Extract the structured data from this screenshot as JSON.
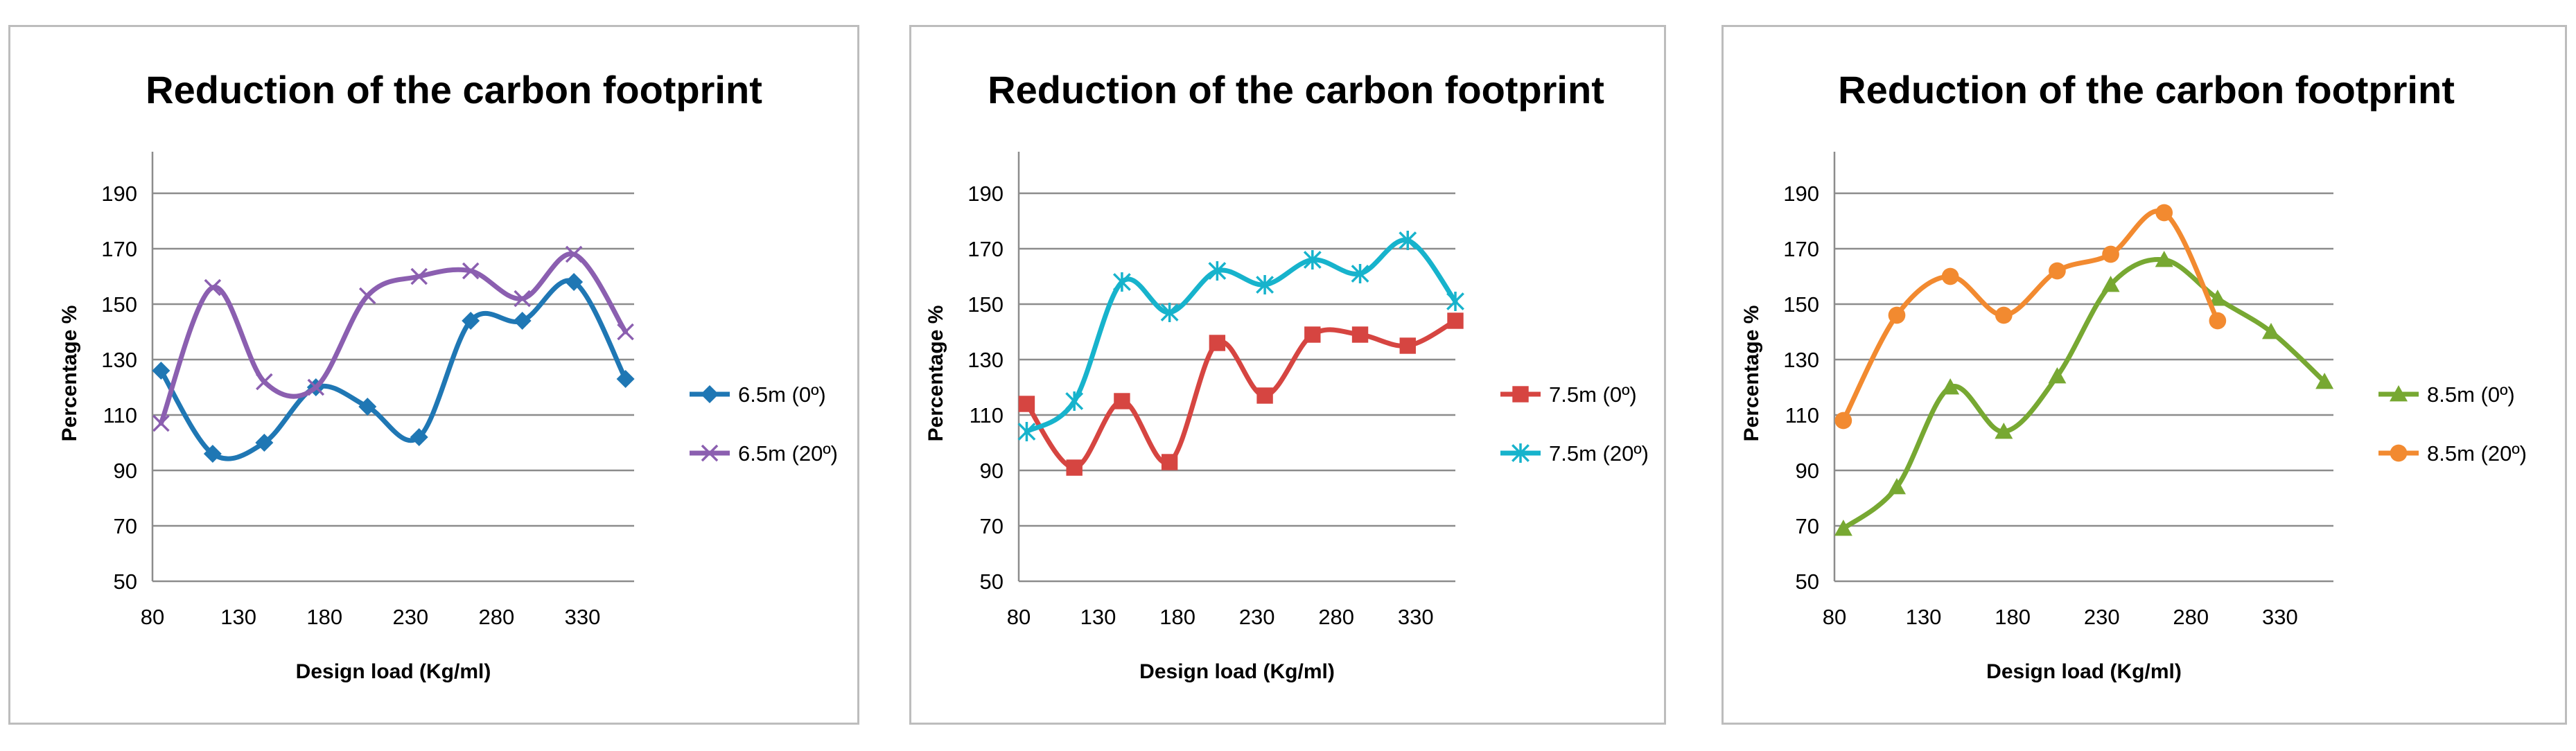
{
  "chart_data": [
    {
      "type": "line",
      "title": "Reduction of the carbon footprint",
      "xlabel": "Design load (Kg/ml)",
      "ylabel": "Percentage %",
      "xlim": [
        80,
        360
      ],
      "ylim": [
        50,
        200
      ],
      "xticks": [
        80,
        130,
        180,
        230,
        280,
        330
      ],
      "yticks": [
        50,
        70,
        90,
        110,
        130,
        150,
        170,
        190
      ],
      "grid": true,
      "legend": "right",
      "series": [
        {
          "name": "6.5m (0º)",
          "color": "#1f77b4",
          "marker": "diamond",
          "x": [
            85,
            115,
            145,
            175,
            205,
            235,
            265,
            295,
            325,
            355
          ],
          "y": [
            126,
            96,
            100,
            120,
            113,
            102,
            144,
            144,
            158,
            123
          ]
        },
        {
          "name": "6.5m (20º)",
          "color": "#8b5fb0",
          "marker": "x",
          "x": [
            85,
            115,
            145,
            175,
            205,
            235,
            265,
            295,
            325,
            355
          ],
          "y": [
            107,
            156,
            122,
            120,
            153,
            160,
            162,
            152,
            168,
            140
          ]
        }
      ]
    },
    {
      "type": "line",
      "title": "Reduction of the carbon footprint",
      "xlabel": "Design load (Kg/ml)",
      "ylabel": "Percentage %",
      "xlim": [
        80,
        355
      ],
      "ylim": [
        50,
        200
      ],
      "xticks": [
        80,
        130,
        180,
        230,
        280,
        330
      ],
      "yticks": [
        50,
        70,
        90,
        110,
        130,
        150,
        170,
        190
      ],
      "grid": true,
      "legend": "right",
      "series": [
        {
          "name": "7.5m (0º)",
          "color": "#d64541",
          "marker": "square",
          "x": [
            85,
            115,
            145,
            175,
            205,
            235,
            265,
            295,
            325,
            355
          ],
          "y": [
            114,
            91,
            115,
            93,
            136,
            117,
            139,
            139,
            135,
            144
          ]
        },
        {
          "name": "7.5m (20º)",
          "color": "#17b3cc",
          "marker": "star",
          "x": [
            85,
            115,
            145,
            175,
            205,
            235,
            265,
            295,
            325,
            355
          ],
          "y": [
            104,
            115,
            158,
            147,
            162,
            157,
            166,
            161,
            173,
            151
          ]
        }
      ]
    },
    {
      "type": "line",
      "title": "Reduction of the carbon footprint",
      "xlabel": "Design load (Kg/ml)",
      "ylabel": "Percentage %",
      "xlim": [
        80,
        360
      ],
      "ylim": [
        50,
        200
      ],
      "xticks": [
        80,
        130,
        180,
        230,
        280,
        330
      ],
      "yticks": [
        50,
        70,
        90,
        110,
        130,
        150,
        170,
        190
      ],
      "grid": true,
      "legend": "right",
      "series": [
        {
          "name": "8.5m (0º)",
          "color": "#77a832",
          "marker": "triangle",
          "x": [
            85,
            115,
            145,
            175,
            205,
            235,
            265,
            295,
            325,
            355
          ],
          "y": [
            69,
            84,
            120,
            104,
            124,
            157,
            166,
            152,
            140,
            122
          ]
        },
        {
          "name": "8.5m (20º)",
          "color": "#f28a30",
          "marker": "circle",
          "x": [
            85,
            115,
            145,
            175,
            205,
            235,
            265,
            295
          ],
          "y": [
            108,
            146,
            160,
            146,
            162,
            168,
            183,
            144
          ]
        }
      ]
    }
  ]
}
